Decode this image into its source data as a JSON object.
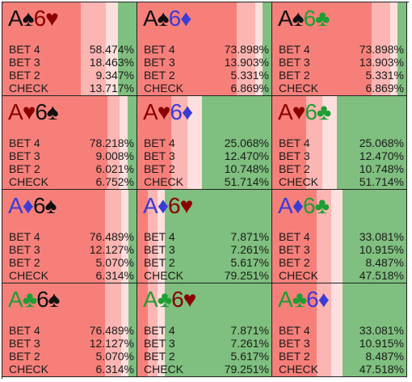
{
  "colors": {
    "spade": "#111111",
    "heart": "#8b0000",
    "diamond": "#3b3bd6",
    "club": "#1e9e33",
    "bet4": "#f77f7a",
    "bet3": "#fbb5b2",
    "bet2": "#fde0de",
    "check": "#7fbf7f"
  },
  "action_labels": [
    "BET 4",
    "BET 3",
    "BET 2",
    "CHECK"
  ],
  "cells": [
    {
      "hand": [
        [
          "A",
          "spade"
        ],
        [
          "♠",
          "spade"
        ],
        [
          "6",
          "heart"
        ],
        [
          "♥",
          "heart"
        ]
      ],
      "freq": [
        58.474,
        18.463,
        9.347,
        13.717
      ],
      "values": [
        "58.474%",
        "18.463%",
        "9.347%",
        "13.717%"
      ]
    },
    {
      "hand": [
        [
          "A",
          "spade"
        ],
        [
          "♠",
          "spade"
        ],
        [
          "6",
          "diamond"
        ],
        [
          "♦",
          "diamond"
        ]
      ],
      "freq": [
        73.898,
        13.903,
        5.331,
        6.869
      ],
      "values": [
        "73.898%",
        "13.903%",
        "5.331%",
        "6.869%"
      ]
    },
    {
      "hand": [
        [
          "A",
          "spade"
        ],
        [
          "♠",
          "spade"
        ],
        [
          "6",
          "club"
        ],
        [
          "♣",
          "club"
        ]
      ],
      "freq": [
        73.898,
        13.903,
        5.331,
        6.869
      ],
      "values": [
        "73.898%",
        "13.903%",
        "5.331%",
        "6.869%"
      ]
    },
    {
      "hand": [
        [
          "A",
          "heart"
        ],
        [
          "♥",
          "heart"
        ],
        [
          "6",
          "spade"
        ],
        [
          "♠",
          "spade"
        ]
      ],
      "freq": [
        78.218,
        9.008,
        6.021,
        6.752
      ],
      "values": [
        "78.218%",
        "9.008%",
        "6.021%",
        "6.752%"
      ]
    },
    {
      "hand": [
        [
          "A",
          "heart"
        ],
        [
          "♥",
          "heart"
        ],
        [
          "6",
          "diamond"
        ],
        [
          "♦",
          "diamond"
        ]
      ],
      "freq": [
        25.068,
        12.47,
        10.748,
        51.714
      ],
      "values": [
        "25.068%",
        "12.470%",
        "10.748%",
        "51.714%"
      ]
    },
    {
      "hand": [
        [
          "A",
          "heart"
        ],
        [
          "♥",
          "heart"
        ],
        [
          "6",
          "club"
        ],
        [
          "♣",
          "club"
        ]
      ],
      "freq": [
        25.068,
        12.47,
        10.748,
        51.714
      ],
      "values": [
        "25.068%",
        "12.470%",
        "10.748%",
        "51.714%"
      ]
    },
    {
      "hand": [
        [
          "A",
          "diamond"
        ],
        [
          "♦",
          "diamond"
        ],
        [
          "6",
          "spade"
        ],
        [
          "♠",
          "spade"
        ]
      ],
      "freq": [
        76.489,
        12.127,
        5.07,
        6.314
      ],
      "values": [
        "76.489%",
        "12.127%",
        "5.070%",
        "6.314%"
      ]
    },
    {
      "hand": [
        [
          "A",
          "diamond"
        ],
        [
          "♦",
          "diamond"
        ],
        [
          "6",
          "heart"
        ],
        [
          "♥",
          "heart"
        ]
      ],
      "freq": [
        7.871,
        7.261,
        5.617,
        79.251
      ],
      "values": [
        "7.871%",
        "7.261%",
        "5.617%",
        "79.251%"
      ]
    },
    {
      "hand": [
        [
          "A",
          "diamond"
        ],
        [
          "♦",
          "diamond"
        ],
        [
          "6",
          "club"
        ],
        [
          "♣",
          "club"
        ]
      ],
      "freq": [
        33.081,
        10.915,
        8.487,
        47.518
      ],
      "values": [
        "33.081%",
        "10.915%",
        "8.487%",
        "47.518%"
      ]
    },
    {
      "hand": [
        [
          "A",
          "club"
        ],
        [
          "♣",
          "club"
        ],
        [
          "6",
          "spade"
        ],
        [
          "♠",
          "spade"
        ]
      ],
      "freq": [
        76.489,
        12.127,
        5.07,
        6.314
      ],
      "values": [
        "76.489%",
        "12.127%",
        "5.070%",
        "6.314%"
      ]
    },
    {
      "hand": [
        [
          "A",
          "club"
        ],
        [
          "♣",
          "club"
        ],
        [
          "6",
          "heart"
        ],
        [
          "♥",
          "heart"
        ]
      ],
      "freq": [
        7.871,
        7.261,
        5.617,
        79.251
      ],
      "values": [
        "7.871%",
        "7.261%",
        "5.617%",
        "79.251%"
      ]
    },
    {
      "hand": [
        [
          "A",
          "club"
        ],
        [
          "♣",
          "club"
        ],
        [
          "6",
          "diamond"
        ],
        [
          "♦",
          "diamond"
        ]
      ],
      "freq": [
        33.081,
        10.915,
        8.487,
        47.518
      ],
      "values": [
        "33.081%",
        "10.915%",
        "8.487%",
        "47.518%"
      ]
    }
  ]
}
